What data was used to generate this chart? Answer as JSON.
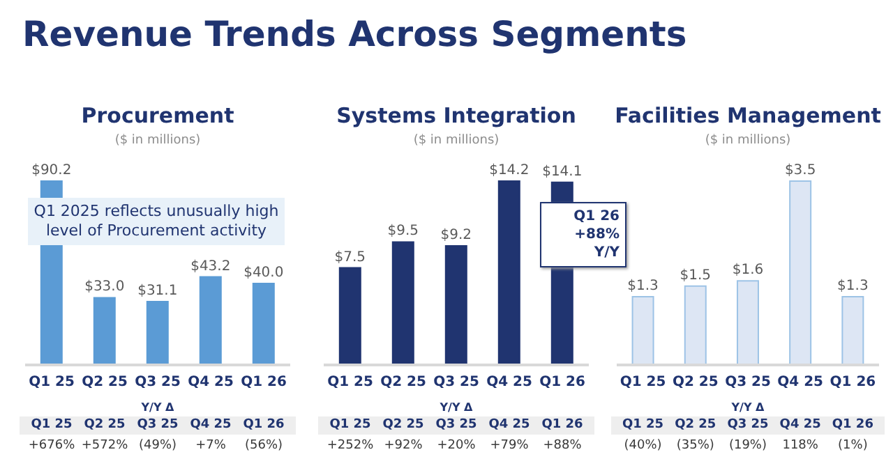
{
  "chart_data": [
    {
      "type": "bar",
      "title": "Procurement",
      "subtitle": "($ in millions)",
      "categories": [
        "Q1 25",
        "Q2 25",
        "Q3 25",
        "Q4 25",
        "Q1 26"
      ],
      "series": [
        {
          "color": "#5b9bd5",
          "values": [
            90.2,
            33.0,
            31.1,
            43.2,
            40.0
          ],
          "value_labels": [
            "$90.2",
            "$33.0",
            "$31.1",
            "$43.2",
            "$40.0"
          ]
        }
      ],
      "annotations": [
        "Revenue Trends Across Segments",
        "Q1 2025 reflects unusually high level of Procurement activity",
        "Y/Y Δ",
        "+676%",
        "+572%",
        "(49%)",
        "+7%",
        "(56%)"
      ]
    },
    {
      "type": "bar",
      "title": "Systems Integration",
      "subtitle": "($ in millions)",
      "categories": [
        "Q1 25",
        "Q2 25",
        "Q3 25",
        "Q4 25",
        "Q1 26"
      ],
      "series": [
        {
          "color": "#203470",
          "values": [
            7.5,
            9.5,
            9.2,
            14.2,
            14.1
          ],
          "value_labels": [
            "$7.5",
            "$9.5",
            "$9.2",
            "$14.2",
            "$14.1"
          ]
        }
      ],
      "annotations": [
        {
          "text": "Q1 26 +88% Y/Y",
          "x": "Q1 26",
          "y": 14.1
        },
        "Y/Y Δ",
        "+252%",
        "+92%",
        "+20%",
        "+79%",
        "+88%"
      ]
    },
    {
      "type": "bar",
      "title": "Facilities Management",
      "subtitle": "($ in millions)",
      "categories": [
        "Q1 25",
        "Q2 25",
        "Q3 25",
        "Q4 25",
        "Q1 26"
      ],
      "series": [
        {
          "color": "#dde6f4",
          "values": [
            1.3,
            1.5,
            1.6,
            3.5,
            1.3
          ],
          "value_labels": [
            "$1.3",
            "$1.5",
            "$1.6",
            "$3.5",
            "$1.3"
          ]
        }
      ],
      "annotations": [
        "Y/Y Δ",
        "(40%)",
        "(35%)",
        "(19%)",
        "118%",
        "(1%)"
      ]
    }
  ]
}
